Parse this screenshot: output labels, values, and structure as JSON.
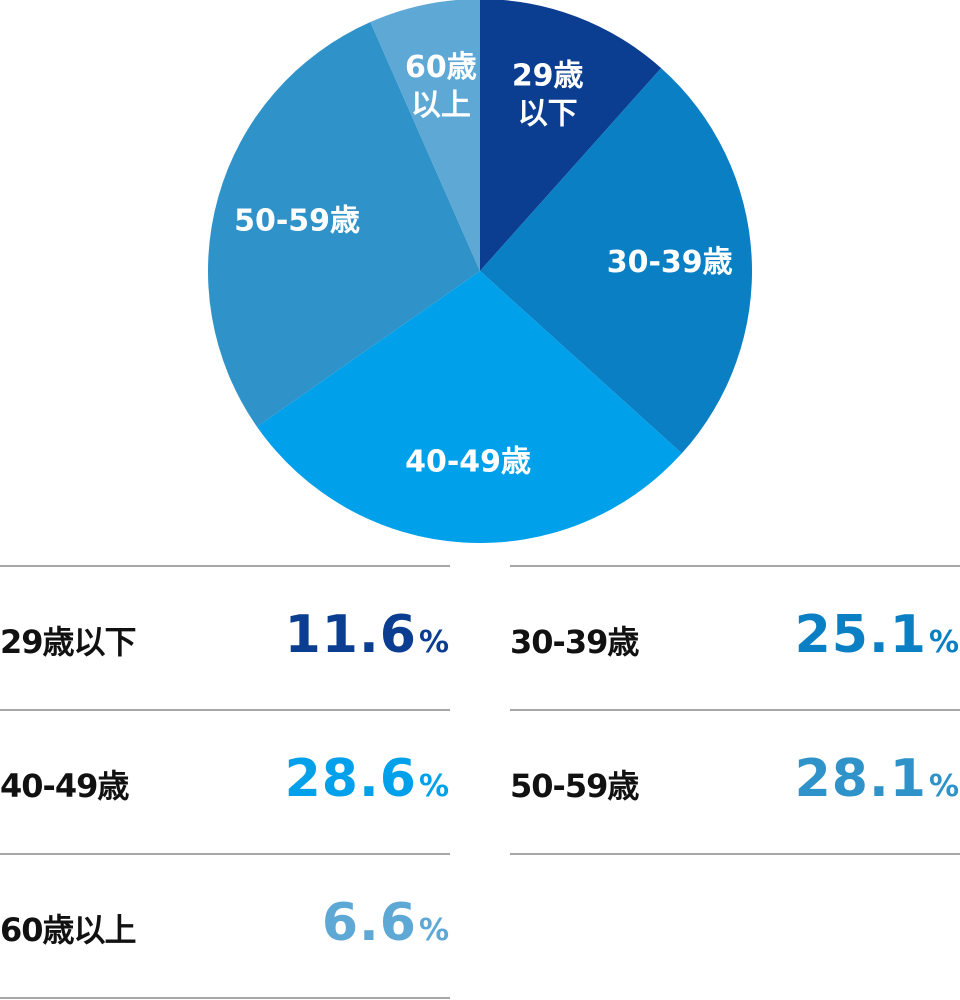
{
  "chart_data": {
    "type": "pie",
    "categories": [
      "29歳以下",
      "30-39歳",
      "40-49歳",
      "50-59歳",
      "60歳以上"
    ],
    "slice_labels": [
      [
        "29歳",
        "以下"
      ],
      [
        "30-39歳"
      ],
      [
        "40-49歳"
      ],
      [
        "50-59歳"
      ],
      [
        "60歳",
        "以上"
      ]
    ],
    "values": [
      11.6,
      25.1,
      28.6,
      28.1,
      6.6
    ],
    "colors": [
      "#0b3d91",
      "#0a7fc4",
      "#00a0ea",
      "#2f93c9",
      "#5ea8d6"
    ],
    "start": "12 o'clock, clockwise"
  },
  "legend": {
    "unit": "%",
    "items": [
      {
        "label": "29歳以下",
        "value": "11.6",
        "color": "#0b3d91"
      },
      {
        "label": "30-39歳",
        "value": "25.1",
        "color": "#0a7fc4"
      },
      {
        "label": "40-49歳",
        "value": "28.6",
        "color": "#00a0ea"
      },
      {
        "label": "50-59歳",
        "value": "28.1",
        "color": "#2f93c9"
      },
      {
        "label": "60歳以上",
        "value": "6.6",
        "color": "#5ea8d6"
      }
    ]
  }
}
